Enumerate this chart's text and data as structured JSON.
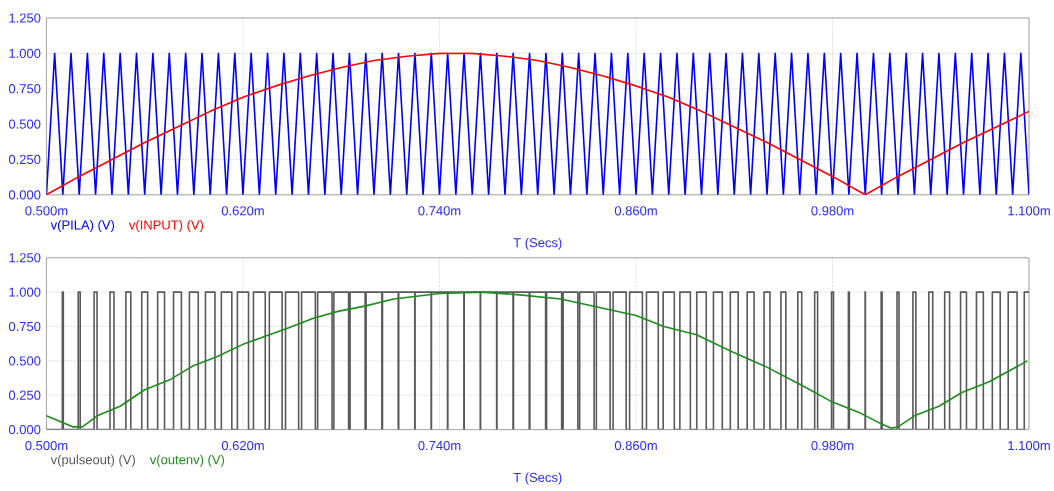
{
  "chart_data": [
    {
      "type": "line",
      "xlabel": "T (Secs)",
      "xlim": [
        0.5,
        1.1
      ],
      "ylim": [
        0,
        1.25
      ],
      "xticks": [
        {
          "value": 0.5,
          "label": "0.500m"
        },
        {
          "value": 0.62,
          "label": "0.620m"
        },
        {
          "value": 0.74,
          "label": "0.740m"
        },
        {
          "value": 0.86,
          "label": "0.860m"
        },
        {
          "value": 0.98,
          "label": "0.980m"
        },
        {
          "value": 1.1,
          "label": "1.100m"
        }
      ],
      "yticks": [
        {
          "value": 0,
          "label": "0.000"
        },
        {
          "value": 0.25,
          "label": "0.250"
        },
        {
          "value": 0.5,
          "label": "0.500"
        },
        {
          "value": 0.75,
          "label": "0.750"
        },
        {
          "value": 1,
          "label": "1.000"
        },
        {
          "value": 1.25,
          "label": "1.250"
        }
      ],
      "grid": true,
      "series": [
        {
          "name": "v(PILA) (V)",
          "color": "#0000ff",
          "x": [
            0.5,
            0.505,
            0.51,
            0.515,
            0.52,
            0.525,
            0.53,
            0.535,
            0.54,
            0.545,
            0.55,
            0.555,
            0.56,
            0.565,
            0.57,
            0.575,
            0.58,
            0.585,
            0.59,
            0.595,
            0.6,
            0.605,
            0.61,
            0.615,
            0.62,
            0.625,
            0.63,
            0.635,
            0.64,
            0.645,
            0.65,
            0.655,
            0.66,
            0.665,
            0.67,
            0.675,
            0.68,
            0.685,
            0.69,
            0.695,
            0.7,
            0.705,
            0.71,
            0.715,
            0.72,
            0.725,
            0.73,
            0.735,
            0.74,
            0.745,
            0.75,
            0.755,
            0.76,
            0.765,
            0.77,
            0.775,
            0.78,
            0.785,
            0.79,
            0.795,
            0.8,
            0.805,
            0.81,
            0.815,
            0.82,
            0.825,
            0.83,
            0.835,
            0.84,
            0.845,
            0.85,
            0.855,
            0.86,
            0.865,
            0.87,
            0.875,
            0.88,
            0.885,
            0.89,
            0.895,
            0.9,
            0.905,
            0.91,
            0.915,
            0.92,
            0.925,
            0.93,
            0.935,
            0.94,
            0.945,
            0.95,
            0.955,
            0.96,
            0.965,
            0.97,
            0.975,
            0.98,
            0.985,
            0.99,
            0.995,
            1.0,
            1.005,
            1.01,
            1.015,
            1.02,
            1.025,
            1.03,
            1.035,
            1.04,
            1.045,
            1.05,
            1.055,
            1.06,
            1.065,
            1.07,
            1.075,
            1.08,
            1.085,
            1.09,
            1.095,
            1.1
          ],
          "values": [
            0,
            1,
            0,
            1,
            0,
            1,
            0,
            1,
            0,
            1,
            0,
            1,
            0,
            1,
            0,
            1,
            0,
            1,
            0,
            1,
            0,
            1,
            0,
            1,
            0,
            1,
            0,
            1,
            0,
            1,
            0,
            1,
            0,
            1,
            0,
            1,
            0,
            1,
            0,
            1,
            0,
            1,
            0,
            1,
            0,
            1,
            0,
            1,
            0,
            1,
            0,
            1,
            0,
            1,
            0,
            1,
            0,
            1,
            0,
            1,
            0,
            1,
            0,
            1,
            0,
            1,
            0,
            1,
            0,
            1,
            0,
            1,
            0,
            1,
            0,
            1,
            0,
            1,
            0,
            1,
            0,
            1,
            0,
            1,
            0,
            1,
            0,
            1,
            0,
            1,
            0,
            1,
            0,
            1,
            0,
            1,
            0,
            1,
            0,
            1,
            0,
            1,
            0,
            1,
            0,
            1,
            0,
            1,
            0,
            1,
            0,
            1,
            0,
            1,
            0,
            1,
            0,
            1,
            0,
            1,
            0
          ]
        },
        {
          "name": "v(INPUT) (V)",
          "color": "#ff0000",
          "x": [
            0.5,
            0.52,
            0.54,
            0.56,
            0.58,
            0.6,
            0.62,
            0.64,
            0.66,
            0.68,
            0.7,
            0.72,
            0.74,
            0.75,
            0.76,
            0.78,
            0.8,
            0.82,
            0.84,
            0.86,
            0.88,
            0.9,
            0.92,
            0.94,
            0.96,
            0.98,
            1.0,
            1.02,
            1.04,
            1.06,
            1.08,
            1.1
          ],
          "values": [
            0,
            0.13,
            0.25,
            0.37,
            0.48,
            0.59,
            0.69,
            0.77,
            0.84,
            0.9,
            0.95,
            0.98,
            1,
            1,
            1,
            0.98,
            0.95,
            0.9,
            0.84,
            0.77,
            0.69,
            0.59,
            0.48,
            0.37,
            0.25,
            0.13,
            0,
            0.13,
            0.25,
            0.37,
            0.48,
            0.59
          ]
        }
      ]
    },
    {
      "type": "line",
      "xlabel": "T (Secs)",
      "xlim": [
        0.5,
        1.1
      ],
      "ylim": [
        0,
        1.25
      ],
      "xticks": [
        {
          "value": 0.5,
          "label": "0.500m"
        },
        {
          "value": 0.62,
          "label": "0.620m"
        },
        {
          "value": 0.74,
          "label": "0.740m"
        },
        {
          "value": 0.86,
          "label": "0.860m"
        },
        {
          "value": 0.98,
          "label": "0.980m"
        },
        {
          "value": 1.1,
          "label": "1.100m"
        }
      ],
      "yticks": [
        {
          "value": 0,
          "label": "0.000"
        },
        {
          "value": 0.25,
          "label": "0.250"
        },
        {
          "value": 0.5,
          "label": "0.500"
        },
        {
          "value": 0.75,
          "label": "0.750"
        },
        {
          "value": 1,
          "label": "1.000"
        },
        {
          "value": 1.25,
          "label": "1.250"
        }
      ],
      "grid": true,
      "series": [
        {
          "name": "v(pulseout) (V)",
          "type": "step",
          "color": "#595959",
          "x": [
            0.5,
            0.5097,
            0.5103,
            0.5194,
            0.5206,
            0.5291,
            0.5309,
            0.5388,
            0.5412,
            0.5485,
            0.5515,
            0.5582,
            0.5618,
            0.5679,
            0.5721,
            0.5776,
            0.5824,
            0.5873,
            0.5927,
            0.5971,
            0.6029,
            0.6068,
            0.6132,
            0.6166,
            0.6234,
            0.6264,
            0.6336,
            0.6361,
            0.6439,
            0.646,
            0.654,
            0.6558,
            0.6642,
            0.6656,
            0.6744,
            0.6755,
            0.6845,
            0.6854,
            0.6946,
            0.6952,
            0.7048,
            0.7052,
            0.7148,
            0.7151,
            0.7249,
            0.7251,
            0.7349,
            0.7351,
            0.7449,
            0.7451,
            0.7549,
            0.7551,
            0.7649,
            0.7651,
            0.7749,
            0.7751,
            0.7849,
            0.7852,
            0.7948,
            0.7952,
            0.8048,
            0.8054,
            0.8146,
            0.8155,
            0.8245,
            0.8256,
            0.8344,
            0.8358,
            0.8442,
            0.846,
            0.854,
            0.8561,
            0.8639,
            0.8664,
            0.8736,
            0.8766,
            0.8834,
            0.8868,
            0.8932,
            0.8971,
            0.9029,
            0.9073,
            0.9127,
            0.9176,
            0.9224,
            0.9279,
            0.9321,
            0.9382,
            0.9418,
            0.9485,
            0.9515,
            0.9588,
            0.9612,
            0.9691,
            0.9709,
            0.9794,
            0.9806,
            0.9897,
            0.9903,
            0.9999,
            1.0001,
            1.0097,
            1.0103,
            1.0194,
            1.0206,
            1.0291,
            1.0309,
            1.0388,
            1.0412,
            1.0485,
            1.0515,
            1.0582,
            1.0618,
            1.0679,
            1.0721,
            1.0776,
            1.0824,
            1.0873,
            1.0927,
            1.0971,
            1.1
          ],
          "values": [
            0,
            1,
            0,
            1,
            0,
            1,
            0,
            1,
            0,
            1,
            0,
            1,
            0,
            1,
            0,
            1,
            0,
            1,
            0,
            1,
            0,
            1,
            0,
            1,
            0,
            1,
            0,
            1,
            0,
            1,
            0,
            1,
            0,
            1,
            0,
            1,
            0,
            1,
            0,
            1,
            0,
            1,
            0,
            1,
            0,
            1,
            0,
            1,
            0,
            1,
            0,
            1,
            0,
            1,
            0,
            1,
            0,
            1,
            0,
            1,
            0,
            1,
            0,
            1,
            0,
            1,
            0,
            1,
            0,
            1,
            0,
            1,
            0,
            1,
            0,
            1,
            0,
            1,
            0,
            1,
            0,
            1,
            0,
            1,
            0,
            1,
            0,
            1,
            0,
            1,
            0,
            1,
            0,
            1,
            0,
            1,
            0,
            1,
            0,
            1,
            0,
            1,
            0,
            1,
            0,
            1,
            0,
            1,
            0,
            1,
            0,
            1,
            0,
            1,
            0,
            1,
            0,
            1,
            0,
            1,
            1
          ]
        },
        {
          "name": "v(outenv) (V)",
          "color": "#1e8c1e",
          "x": [
            0.5,
            0.516,
            0.522,
            0.531,
            0.545,
            0.56,
            0.575,
            0.589,
            0.604,
            0.62,
            0.634,
            0.648,
            0.663,
            0.678,
            0.695,
            0.712,
            0.74,
            0.766,
            0.789,
            0.814,
            0.837,
            0.86,
            0.877,
            0.897,
            0.918,
            0.939,
            0.96,
            0.98,
            0.997,
            1.01,
            1.016,
            1.02,
            1.03,
            1.045,
            1.059,
            1.076,
            1.099
          ],
          "values": [
            0.1,
            0.02,
            0.02,
            0.1,
            0.17,
            0.29,
            0.36,
            0.46,
            0.53,
            0.62,
            0.68,
            0.74,
            0.81,
            0.86,
            0.9,
            0.95,
            0.99,
            1,
            0.98,
            0.95,
            0.89,
            0.83,
            0.75,
            0.69,
            0.57,
            0.46,
            0.33,
            0.2,
            0.12,
            0.04,
            0.01,
            0.02,
            0.1,
            0.17,
            0.27,
            0.35,
            0.5
          ]
        }
      ]
    }
  ]
}
